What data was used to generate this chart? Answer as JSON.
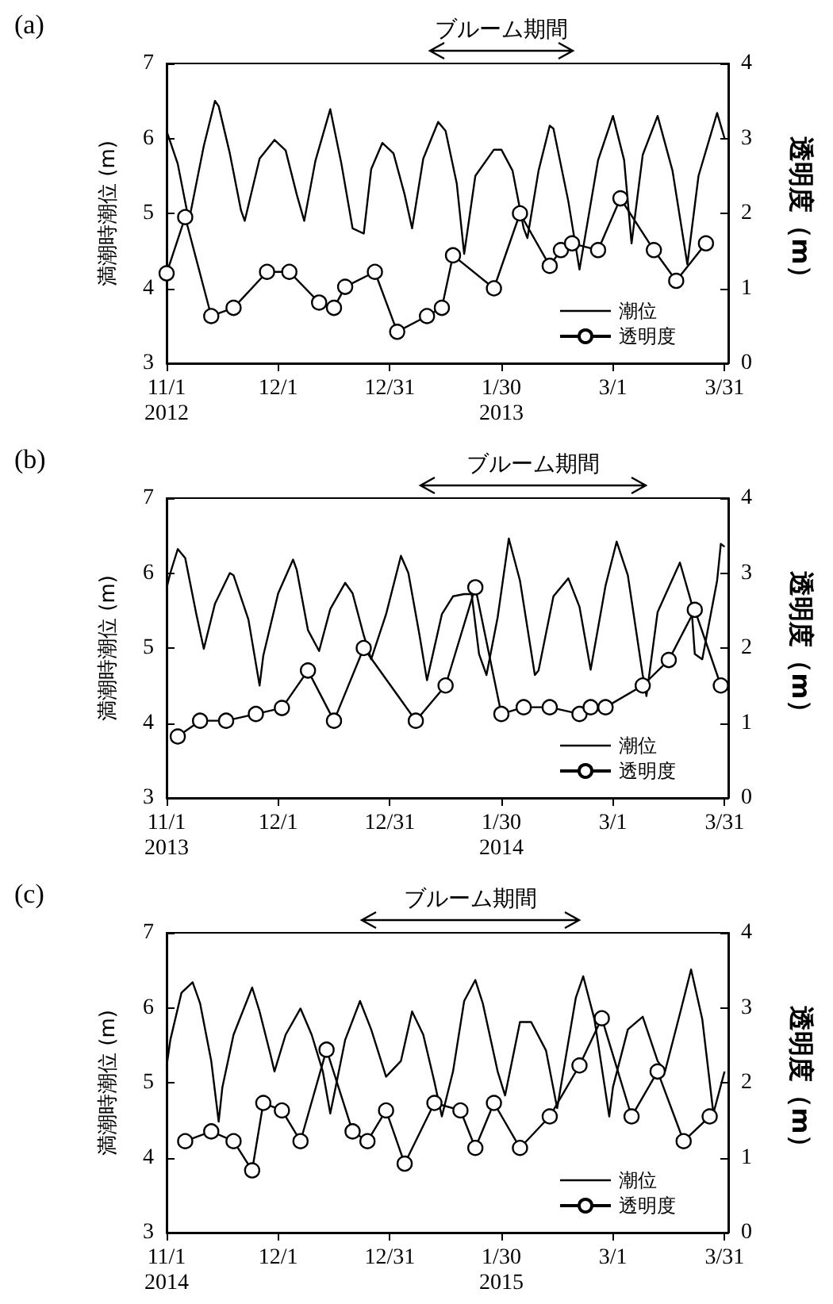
{
  "chart_data": [
    {
      "type": "line",
      "title": "(a)",
      "ylabel": "満潮時潮位 (m)",
      "y2label": "透明度（m）",
      "xlim": [
        "2012-11-01",
        "2013-04-01"
      ],
      "xticks": [
        {
          "value": "2012-11-01",
          "label": "11/1\n2012"
        },
        {
          "value": "2012-12-01",
          "label": "12/1"
        },
        {
          "value": "2012-12-31",
          "label": "12/31"
        },
        {
          "value": "2013-01-30",
          "label": "1/30\n2013"
        },
        {
          "value": "2013-03-01",
          "label": "3/1"
        },
        {
          "value": "2013-03-31",
          "label": "3/31"
        }
      ],
      "ylim": [
        3,
        7
      ],
      "yticks": [
        3,
        4,
        5,
        6,
        7
      ],
      "y2lim": [
        0,
        4
      ],
      "y2ticks": [
        0,
        1,
        2,
        3,
        4
      ],
      "grid": false,
      "legend": "bottom right",
      "annotations": [
        "ブルーム期間"
      ],
      "series": [
        {
          "name": "潮位",
          "color": "#000000",
          "marker": "none",
          "x": [
            "2012-11-01",
            "2012-11-04",
            "2012-11-07",
            "2012-11-11",
            "2012-11-14",
            "2012-11-15",
            "2012-11-18",
            "2012-11-21",
            "2012-11-22",
            "2012-11-26",
            "2012-11-30",
            "2012-12-03",
            "2012-12-06",
            "2012-12-08",
            "2012-12-11",
            "2012-12-15",
            "2012-12-18",
            "2012-12-21",
            "2012-12-24",
            "2012-12-26",
            "2012-12-29",
            "2013-01-01",
            "2013-01-04",
            "2013-01-06",
            "2013-01-09",
            "2013-01-13",
            "2013-01-15",
            "2013-01-18",
            "2013-01-20",
            "2013-01-23",
            "2013-01-28",
            "2013-01-30",
            "2013-02-02",
            "2013-02-05",
            "2013-02-06",
            "2013-02-09",
            "2013-02-12",
            "2013-02-13",
            "2013-02-17",
            "2013-02-20",
            "2013-02-25",
            "2013-03-01",
            "2013-03-04",
            "2013-03-06",
            "2013-03-09",
            "2013-03-13",
            "2013-03-17",
            "2013-03-21",
            "2013-03-24",
            "2013-03-29",
            "2013-03-31"
          ],
          "values": [
            6.1,
            5.66,
            4.9,
            5.9,
            6.5,
            6.43,
            5.8,
            5.04,
            4.9,
            5.73,
            5.98,
            5.84,
            5.25,
            4.9,
            5.7,
            6.39,
            5.66,
            4.8,
            4.73,
            5.59,
            5.94,
            5.8,
            5.25,
            4.8,
            5.73,
            6.22,
            6.1,
            5.4,
            4.46,
            5.5,
            5.85,
            5.85,
            5.57,
            4.8,
            4.67,
            5.57,
            6.17,
            6.13,
            5.16,
            4.25,
            5.71,
            6.3,
            5.71,
            4.6,
            5.78,
            6.3,
            5.57,
            4.32,
            5.5,
            6.34,
            6.0
          ]
        },
        {
          "name": "透明度",
          "color": "#000000",
          "marker": "circle",
          "axis": "y2",
          "x": [
            "2012-11-01",
            "2012-11-06",
            "2012-11-13",
            "2012-11-19",
            "2012-11-28",
            "2012-12-04",
            "2012-12-12",
            "2012-12-16",
            "2012-12-19",
            "2012-12-27",
            "2013-01-02",
            "2013-01-10",
            "2013-01-14",
            "2013-01-17",
            "2013-01-28",
            "2013-02-04",
            "2013-02-12",
            "2013-02-15",
            "2013-02-18",
            "2013-02-25",
            "2013-03-03",
            "2013-03-12",
            "2013-03-18",
            "2013-03-26"
          ],
          "values": [
            1.2,
            1.95,
            0.63,
            0.74,
            1.22,
            1.22,
            0.81,
            0.74,
            1.02,
            1.22,
            0.42,
            0.63,
            0.74,
            1.44,
            1.0,
            2.0,
            1.3,
            1.51,
            1.6,
            1.51,
            2.2,
            1.51,
            1.1,
            1.6
          ]
        }
      ]
    },
    {
      "type": "line",
      "title": "(b)",
      "ylabel": "満潮時潮位 (m)",
      "y2label": "透明度（m）",
      "xlim": [
        "2013-11-01",
        "2014-04-01"
      ],
      "xticks": [
        {
          "value": "2013-11-01",
          "label": "11/1\n2013"
        },
        {
          "value": "2013-12-01",
          "label": "12/1"
        },
        {
          "value": "2013-12-31",
          "label": "12/31"
        },
        {
          "value": "2014-01-30",
          "label": "1/30\n2014"
        },
        {
          "value": "2014-03-01",
          "label": "3/1"
        },
        {
          "value": "2014-03-31",
          "label": "3/31"
        }
      ],
      "ylim": [
        3,
        7
      ],
      "yticks": [
        3,
        4,
        5,
        6,
        7
      ],
      "y2lim": [
        0,
        4
      ],
      "y2ticks": [
        0,
        1,
        2,
        3,
        4
      ],
      "grid": false,
      "legend": "bottom right",
      "annotations": [
        "ブルーム期間"
      ],
      "series": [
        {
          "name": "潮位",
          "color": "#000000",
          "marker": "none",
          "x": [
            "2013-11-01",
            "2013-11-02",
            "2013-11-04",
            "2013-11-06",
            "2013-11-09",
            "2013-11-11",
            "2013-11-14",
            "2013-11-18",
            "2013-11-19",
            "2013-11-23",
            "2013-11-26",
            "2013-11-27",
            "2013-12-01",
            "2013-12-05",
            "2013-12-06",
            "2013-12-09",
            "2013-12-12",
            "2013-12-15",
            "2013-12-19",
            "2013-12-21",
            "2013-12-24",
            "2013-12-26",
            "2013-12-30",
            "2014-01-03",
            "2014-01-05",
            "2014-01-08",
            "2014-01-10",
            "2014-01-14",
            "2014-01-17",
            "2014-01-20",
            "2014-01-22",
            "2014-01-24",
            "2014-01-26",
            "2014-01-29",
            "2014-02-01",
            "2014-02-04",
            "2014-02-08",
            "2014-02-09",
            "2014-02-13",
            "2014-02-17",
            "2014-02-20",
            "2014-02-23",
            "2014-02-27",
            "2014-03-02",
            "2014-03-05",
            "2014-03-09",
            "2014-03-10",
            "2014-03-13",
            "2014-03-19",
            "2014-03-22",
            "2014-03-23",
            "2014-03-25",
            "2014-03-29",
            "2014-03-30",
            "2014-03-31"
          ],
          "values": [
            5.8,
            6.0,
            6.32,
            6.2,
            5.45,
            4.99,
            5.59,
            6.0,
            5.97,
            5.38,
            4.5,
            4.9,
            5.73,
            6.18,
            6.04,
            5.24,
            4.96,
            5.52,
            5.87,
            5.73,
            5.17,
            4.85,
            5.45,
            6.23,
            6.0,
            5.17,
            4.57,
            5.45,
            5.69,
            5.72,
            5.72,
            4.92,
            4.64,
            5.41,
            6.46,
            5.9,
            4.64,
            4.7,
            5.69,
            5.93,
            5.55,
            4.71,
            5.83,
            6.42,
            5.97,
            4.64,
            4.36,
            5.48,
            6.14,
            5.62,
            4.92,
            4.85,
            5.9,
            6.39,
            6.35
          ]
        },
        {
          "name": "透明度",
          "color": "#000000",
          "marker": "circle",
          "axis": "y2",
          "x": [
            "2013-11-04",
            "2013-11-10",
            "2013-11-17",
            "2013-11-25",
            "2013-12-02",
            "2013-12-09",
            "2013-12-16",
            "2013-12-24",
            "2014-01-07",
            "2014-01-15",
            "2014-01-23",
            "2014-01-30",
            "2014-02-05",
            "2014-02-12",
            "2014-02-20",
            "2014-02-23",
            "2014-02-27",
            "2014-03-09",
            "2014-03-16",
            "2014-03-23",
            "2014-03-30"
          ],
          "values": [
            0.82,
            1.03,
            1.03,
            1.12,
            1.2,
            1.7,
            1.03,
            2.0,
            1.03,
            1.5,
            2.81,
            1.12,
            1.21,
            1.21,
            1.12,
            1.21,
            1.21,
            1.5,
            1.84,
            2.51,
            1.5
          ]
        }
      ]
    },
    {
      "type": "line",
      "title": "(c)",
      "ylabel": "満潮時潮位 (m)",
      "y2label": "透明度（m）",
      "xlim": [
        "2014-11-01",
        "2015-04-01"
      ],
      "xticks": [
        {
          "value": "2014-11-01",
          "label": "11/1\n2014"
        },
        {
          "value": "2014-12-01",
          "label": "12/1"
        },
        {
          "value": "2014-12-31",
          "label": "12/31"
        },
        {
          "value": "2015-01-30",
          "label": "1/30\n2015"
        },
        {
          "value": "2015-03-01",
          "label": "3/1"
        },
        {
          "value": "2015-03-31",
          "label": "3/31"
        }
      ],
      "ylim": [
        3,
        7
      ],
      "yticks": [
        3,
        4,
        5,
        6,
        7
      ],
      "y2lim": [
        0,
        4
      ],
      "y2ticks": [
        0,
        1,
        2,
        3,
        4
      ],
      "grid": false,
      "legend": "bottom right",
      "annotations": [
        "ブルーム期間"
      ],
      "series": [
        {
          "name": "潮位",
          "color": "#000000",
          "marker": "none",
          "x": [
            "2014-11-01",
            "2014-11-02",
            "2014-11-05",
            "2014-11-08",
            "2014-11-10",
            "2014-11-13",
            "2014-11-15",
            "2014-11-16",
            "2014-11-19",
            "2014-11-24",
            "2014-11-26",
            "2014-11-29",
            "2014-11-30",
            "2014-12-03",
            "2014-12-07",
            "2014-12-10",
            "2014-12-13",
            "2014-12-15",
            "2014-12-16",
            "2014-12-19",
            "2014-12-23",
            "2014-12-26",
            "2014-12-30",
            "2015-01-03",
            "2015-01-06",
            "2015-01-09",
            "2015-01-12",
            "2015-01-14",
            "2015-01-17",
            "2015-01-20",
            "2015-01-23",
            "2015-01-25",
            "2015-01-29",
            "2015-01-31",
            "2015-02-04",
            "2015-02-07",
            "2015-02-11",
            "2015-02-14",
            "2015-02-19",
            "2015-02-21",
            "2015-02-24",
            "2015-02-28",
            "2015-03-01",
            "2015-03-05",
            "2015-03-09",
            "2015-03-13",
            "2015-03-15",
            "2015-03-19",
            "2015-03-22",
            "2015-03-25",
            "2015-03-28",
            "2015-03-31"
          ],
          "values": [
            5.22,
            5.57,
            6.2,
            6.34,
            6.06,
            5.29,
            4.48,
            4.94,
            5.64,
            6.27,
            5.95,
            5.36,
            5.15,
            5.64,
            5.99,
            5.64,
            5.15,
            4.59,
            4.83,
            5.57,
            6.09,
            5.71,
            5.08,
            5.29,
            5.95,
            5.64,
            5.01,
            4.55,
            5.15,
            6.09,
            6.37,
            6.06,
            5.15,
            4.83,
            5.81,
            5.81,
            5.43,
            4.66,
            6.13,
            6.42,
            5.85,
            4.55,
            4.94,
            5.71,
            5.88,
            5.29,
            5.15,
            5.92,
            6.51,
            5.85,
            4.59,
            5.15
          ]
        },
        {
          "name": "透明度",
          "color": "#000000",
          "marker": "circle",
          "axis": "y2",
          "x": [
            "2014-11-06",
            "2014-11-13",
            "2014-11-19",
            "2014-11-24",
            "2014-11-27",
            "2014-12-02",
            "2014-12-07",
            "2014-12-14",
            "2014-12-21",
            "2014-12-25",
            "2014-12-30",
            "2015-01-04",
            "2015-01-12",
            "2015-01-19",
            "2015-01-23",
            "2015-01-28",
            "2015-02-04",
            "2015-02-12",
            "2015-02-20",
            "2015-02-26",
            "2015-03-06",
            "2015-03-13",
            "2015-03-20",
            "2015-03-27"
          ],
          "values": [
            1.22,
            1.35,
            1.22,
            0.83,
            1.73,
            1.63,
            1.22,
            2.44,
            1.35,
            1.22,
            1.63,
            0.92,
            1.73,
            1.63,
            1.13,
            1.73,
            1.13,
            1.55,
            2.23,
            2.86,
            1.55,
            2.15,
            1.22,
            1.55
          ]
        }
      ]
    }
  ]
}
